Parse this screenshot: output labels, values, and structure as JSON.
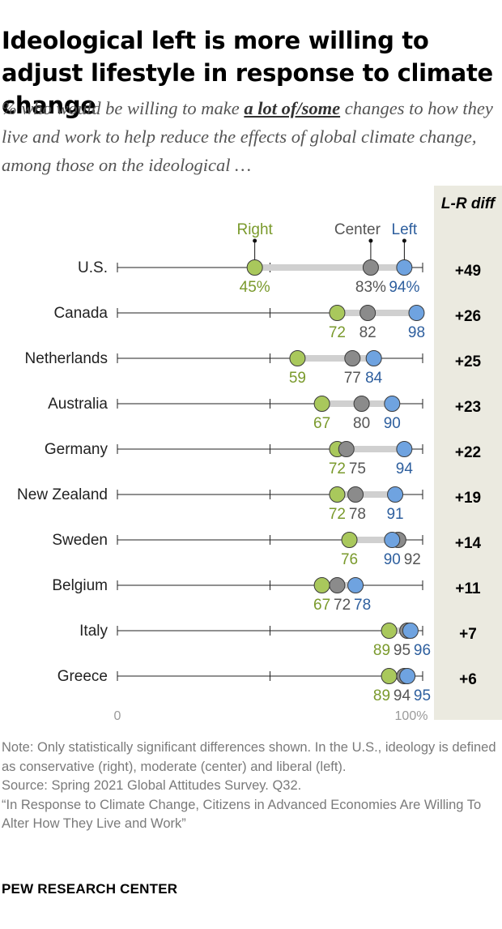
{
  "title": "Ideological left is more willing to adjust lifestyle in response to climate change",
  "subtitle": {
    "before": "% who would be willing to make ",
    "emphasis": "a lot of/some",
    "after": " changes to how they live and work to help reduce the effects of global climate change, among those on the ideological …"
  },
  "diff_header": "L-R diff",
  "notes": {
    "note": "Note: Only statistically significant differences shown. In the U.S., ideology is defined as conservative (right), moderate (center) and liberal (left).",
    "source": "Source: Spring 2021 Global Attitudes Survey. Q32.",
    "report": "“In Response to Climate Change, Citizens in Advanced Economies Are Willing To Alter How They Live and Work”"
  },
  "brand": "PEW RESEARCH CENTER",
  "colors": {
    "right": "#a9c85c",
    "center": "#8b8b8b",
    "left": "#6fa3e0",
    "bar": "#d0d0d0",
    "right_text": "#7a9a2c",
    "center_text": "#555555",
    "left_text": "#2e5f9e",
    "diff_bg": "#ebeae0"
  },
  "chart_data": {
    "type": "dot_plot",
    "xlim": [
      0,
      100
    ],
    "axis_labels": [
      "0",
      "100%"
    ],
    "legend": [
      "Right",
      "Center",
      "Left"
    ],
    "series": [
      {
        "name": "Right",
        "values": [
          45,
          72,
          59,
          67,
          72,
          72,
          76,
          67,
          89,
          89
        ]
      },
      {
        "name": "Center",
        "values": [
          83,
          82,
          77,
          80,
          75,
          78,
          92,
          72,
          95,
          94
        ]
      },
      {
        "name": "Left",
        "values": [
          94,
          98,
          84,
          90,
          94,
          91,
          90,
          78,
          96,
          95
        ]
      }
    ],
    "categories": [
      "U.S.",
      "Canada",
      "Netherlands",
      "Australia",
      "Germany",
      "New Zealand",
      "Sweden",
      "Belgium",
      "Italy",
      "Greece"
    ],
    "rows": [
      {
        "label": "U.S.",
        "right": 45,
        "center": 83,
        "left": 94,
        "right_label": "45%",
        "center_label": "83%",
        "left_label": "94%",
        "diff": "+49"
      },
      {
        "label": "Canada",
        "right": 72,
        "center": 82,
        "left": 98,
        "right_label": "72",
        "center_label": "82",
        "left_label": "98",
        "diff": "+26"
      },
      {
        "label": "Netherlands",
        "right": 59,
        "center": 77,
        "left": 84,
        "right_label": "59",
        "center_label": "77",
        "left_label": "84",
        "diff": "+25"
      },
      {
        "label": "Australia",
        "right": 67,
        "center": 80,
        "left": 90,
        "right_label": "67",
        "center_label": "80",
        "left_label": "90",
        "diff": "+23"
      },
      {
        "label": "Germany",
        "right": 72,
        "center": 75,
        "left": 94,
        "right_label": "72",
        "center_label": "75",
        "left_label": "94",
        "diff": "+22"
      },
      {
        "label": "New Zealand",
        "right": 72,
        "center": 78,
        "left": 91,
        "right_label": "72",
        "center_label": "78",
        "left_label": "91",
        "diff": "+19"
      },
      {
        "label": "Sweden",
        "right": 76,
        "center": 92,
        "left": 90,
        "right_label": "76",
        "center_label": "92",
        "left_label": "90",
        "diff": "+14"
      },
      {
        "label": "Belgium",
        "right": 67,
        "center": 72,
        "left": 78,
        "right_label": "67",
        "center_label": "72",
        "left_label": "78",
        "diff": "+11"
      },
      {
        "label": "Italy",
        "right": 89,
        "center": 95,
        "left": 96,
        "right_label": "89",
        "center_label": "95",
        "left_label": "96",
        "diff": "+7"
      },
      {
        "label": "Greece",
        "right": 89,
        "center": 94,
        "left": 95,
        "right_label": "89",
        "center_label": "94",
        "left_label": "95",
        "diff": "+6"
      }
    ]
  }
}
